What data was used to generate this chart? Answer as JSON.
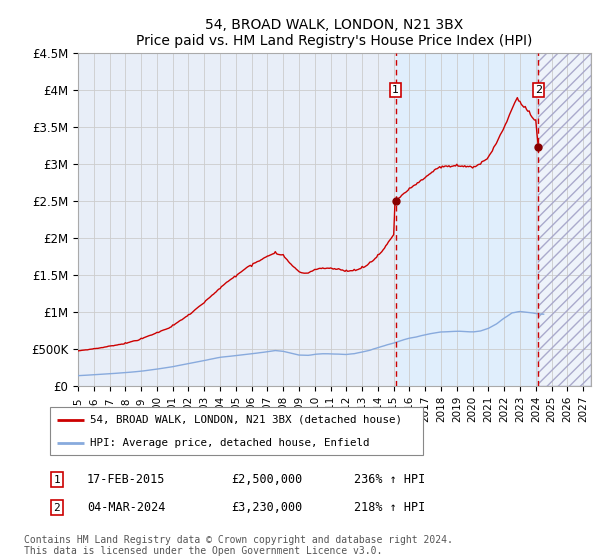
{
  "title": "54, BROAD WALK, LONDON, N21 3BX",
  "subtitle": "Price paid vs. HM Land Registry's House Price Index (HPI)",
  "ylim": [
    0,
    4500000
  ],
  "xlim_start": 1995.0,
  "xlim_end": 2027.5,
  "yticks": [
    0,
    500000,
    1000000,
    1500000,
    2000000,
    2500000,
    3000000,
    3500000,
    4000000,
    4500000
  ],
  "ytick_labels": [
    "£0",
    "£500K",
    "£1M",
    "£1.5M",
    "£2M",
    "£2.5M",
    "£3M",
    "£3.5M",
    "£4M",
    "£4.5M"
  ],
  "xticks": [
    1995,
    1996,
    1997,
    1998,
    1999,
    2000,
    2001,
    2002,
    2003,
    2004,
    2005,
    2006,
    2007,
    2008,
    2009,
    2010,
    2011,
    2012,
    2013,
    2014,
    2015,
    2016,
    2017,
    2018,
    2019,
    2020,
    2021,
    2022,
    2023,
    2024,
    2025,
    2026,
    2027
  ],
  "red_line_color": "#cc0000",
  "blue_line_color": "#88aadd",
  "vline1_x": 2015.12,
  "vline2_x": 2024.17,
  "hatch_start": 2024.17,
  "highlight_start": 2015.12,
  "grid_color": "#cccccc",
  "background_color": "#e8eef8",
  "legend_line1": "54, BROAD WALK, LONDON, N21 3BX (detached house)",
  "legend_line2": "HPI: Average price, detached house, Enfield",
  "annotation1_num": "1",
  "annotation1_date": "17-FEB-2015",
  "annotation1_price": "£2,500,000",
  "annotation1_hpi": "236% ↑ HPI",
  "annotation2_num": "2",
  "annotation2_date": "04-MAR-2024",
  "annotation2_price": "£3,230,000",
  "annotation2_hpi": "218% ↑ HPI",
  "footnote": "Contains HM Land Registry data © Crown copyright and database right 2024.\nThis data is licensed under the Open Government Licence v3.0.",
  "dot1_x": 2015.12,
  "dot1_y": 2500000,
  "dot2_x": 2024.17,
  "dot2_y": 3230000
}
